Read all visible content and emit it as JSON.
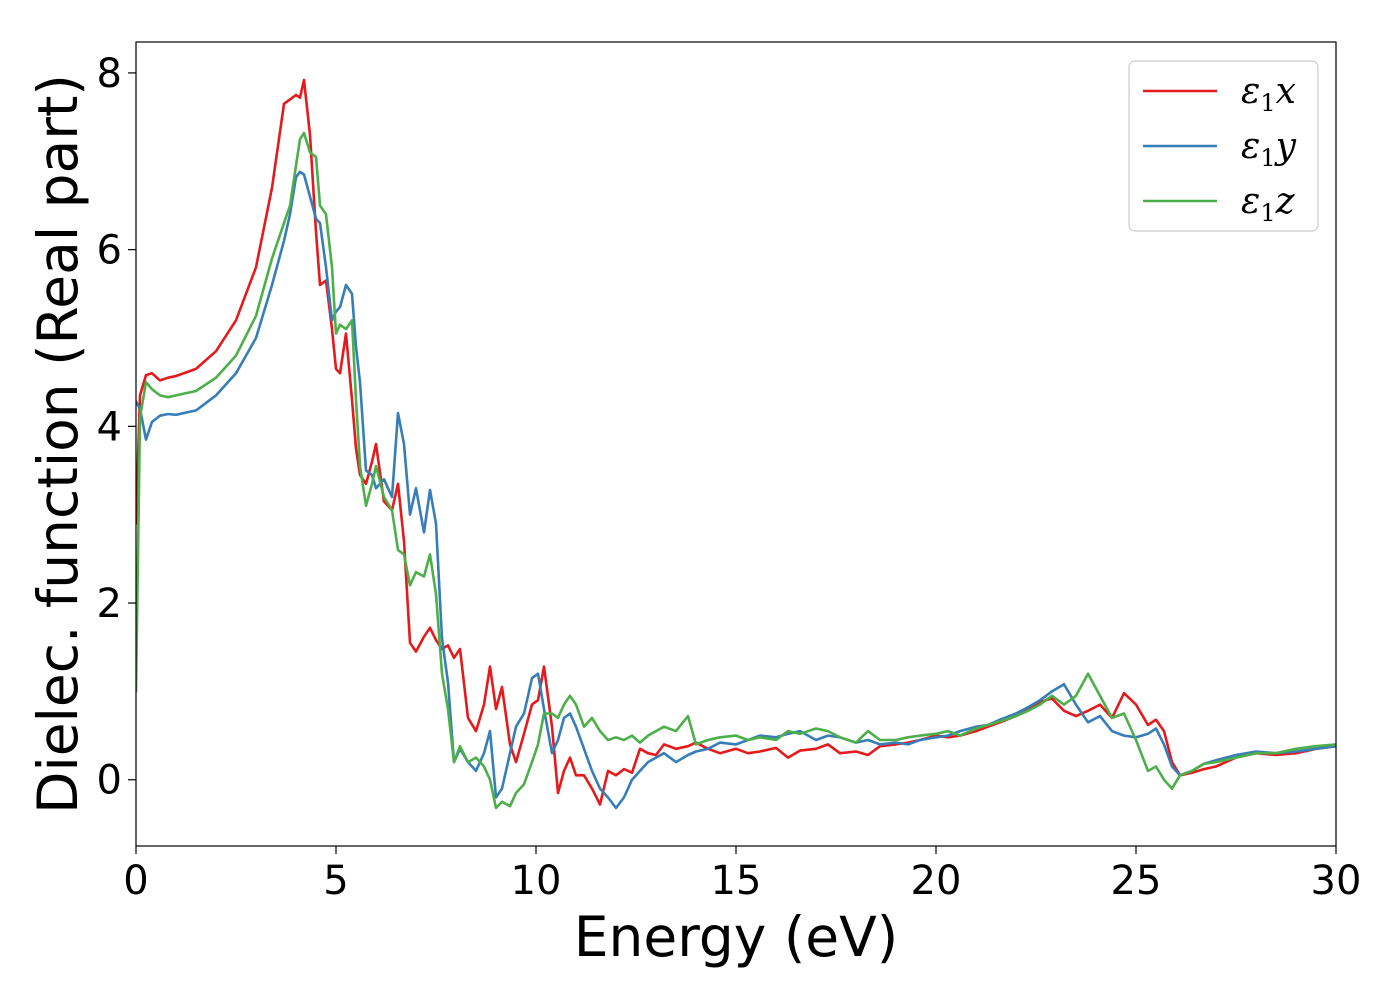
{
  "chart_data": {
    "type": "line",
    "title": "",
    "xlabel": "Energy (eV)",
    "ylabel": "Dielec. function (Real part)",
    "xlim": [
      0,
      30
    ],
    "ylim": [
      -0.75,
      8.35
    ],
    "xticks": [
      0,
      5,
      10,
      15,
      20,
      25,
      30
    ],
    "xtick_labels": [
      "0",
      "5",
      "10",
      "15",
      "20",
      "25",
      "30"
    ],
    "yticks": [
      0,
      2,
      4,
      6,
      8
    ],
    "ytick_labels": [
      "0",
      "2",
      "4",
      "6",
      "8"
    ],
    "grid": false,
    "legend_position": "top-right",
    "series": [
      {
        "name": "ε1x",
        "legend_base": "ε",
        "legend_sub": "1",
        "legend_suffix": "x",
        "color": "#e41a1c",
        "x": [
          0,
          0.1,
          0.25,
          0.4,
          0.6,
          0.8,
          1.0,
          1.5,
          2.0,
          2.5,
          3.0,
          3.4,
          3.7,
          3.85,
          4.0,
          4.1,
          4.2,
          4.35,
          4.5,
          4.6,
          4.75,
          4.9,
          5.0,
          5.1,
          5.25,
          5.4,
          5.5,
          5.6,
          5.75,
          5.9,
          6.0,
          6.2,
          6.4,
          6.55,
          6.7,
          6.85,
          7.0,
          7.2,
          7.35,
          7.5,
          7.65,
          7.8,
          7.95,
          8.1,
          8.3,
          8.5,
          8.7,
          8.85,
          9.0,
          9.15,
          9.35,
          9.5,
          9.7,
          9.9,
          10.05,
          10.2,
          10.4,
          10.55,
          10.7,
          10.85,
          11.0,
          11.2,
          11.4,
          11.6,
          11.8,
          12.0,
          12.2,
          12.4,
          12.6,
          12.8,
          13.0,
          13.2,
          13.5,
          13.8,
          14.0,
          14.3,
          14.6,
          15.0,
          15.3,
          15.6,
          16.0,
          16.3,
          16.6,
          17.0,
          17.3,
          17.6,
          18.0,
          18.3,
          18.6,
          19.0,
          19.3,
          19.6,
          20.0,
          20.3,
          20.6,
          21.0,
          21.3,
          21.6,
          22.0,
          22.3,
          22.6,
          22.9,
          23.2,
          23.5,
          23.8,
          24.1,
          24.4,
          24.7,
          25.0,
          25.3,
          25.5,
          25.7,
          25.9,
          26.1,
          26.4,
          26.7,
          27.0,
          27.5,
          28.0,
          28.5,
          29.0,
          29.5,
          30.0
        ],
        "y": [
          2.9,
          4.35,
          4.58,
          4.6,
          4.52,
          4.55,
          4.57,
          4.65,
          4.85,
          5.2,
          5.8,
          6.7,
          7.65,
          7.7,
          7.75,
          7.72,
          7.92,
          7.3,
          6.2,
          5.6,
          5.65,
          5.1,
          4.65,
          4.6,
          5.05,
          4.3,
          3.75,
          3.45,
          3.35,
          3.6,
          3.8,
          3.15,
          3.05,
          3.35,
          2.7,
          1.55,
          1.45,
          1.62,
          1.72,
          1.58,
          1.48,
          1.52,
          1.38,
          1.48,
          0.7,
          0.55,
          0.85,
          1.28,
          0.8,
          1.05,
          0.4,
          0.2,
          0.52,
          0.85,
          0.9,
          1.28,
          0.6,
          -0.15,
          0.1,
          0.25,
          0.05,
          0.05,
          -0.1,
          -0.28,
          0.1,
          0.05,
          0.12,
          0.08,
          0.35,
          0.3,
          0.28,
          0.4,
          0.35,
          0.38,
          0.42,
          0.35,
          0.3,
          0.35,
          0.3,
          0.32,
          0.36,
          0.25,
          0.33,
          0.35,
          0.4,
          0.3,
          0.32,
          0.28,
          0.38,
          0.4,
          0.42,
          0.45,
          0.5,
          0.48,
          0.5,
          0.55,
          0.6,
          0.65,
          0.72,
          0.8,
          0.88,
          0.92,
          0.78,
          0.72,
          0.78,
          0.85,
          0.7,
          0.98,
          0.85,
          0.62,
          0.68,
          0.55,
          0.2,
          0.05,
          0.08,
          0.12,
          0.15,
          0.25,
          0.3,
          0.28,
          0.3,
          0.35,
          0.38
        ]
      },
      {
        "name": "ε1y",
        "legend_base": "ε",
        "legend_sub": "1",
        "legend_suffix": "y",
        "color": "#377eb8",
        "x": [
          0,
          0.1,
          0.25,
          0.4,
          0.6,
          0.8,
          1.0,
          1.5,
          2.0,
          2.5,
          3.0,
          3.4,
          3.7,
          3.85,
          4.0,
          4.1,
          4.2,
          4.35,
          4.5,
          4.6,
          4.75,
          4.9,
          5.0,
          5.1,
          5.25,
          5.4,
          5.5,
          5.6,
          5.75,
          5.9,
          6.0,
          6.2,
          6.4,
          6.55,
          6.7,
          6.85,
          7.0,
          7.2,
          7.35,
          7.5,
          7.65,
          7.8,
          7.95,
          8.1,
          8.3,
          8.5,
          8.7,
          8.85,
          9.0,
          9.15,
          9.35,
          9.5,
          9.7,
          9.9,
          10.05,
          10.2,
          10.4,
          10.55,
          10.7,
          10.85,
          11.0,
          11.2,
          11.4,
          11.6,
          11.8,
          12.0,
          12.2,
          12.4,
          12.6,
          12.8,
          13.0,
          13.2,
          13.5,
          13.8,
          14.0,
          14.3,
          14.6,
          15.0,
          15.3,
          15.6,
          16.0,
          16.3,
          16.6,
          17.0,
          17.3,
          17.6,
          18.0,
          18.3,
          18.6,
          19.0,
          19.3,
          19.6,
          20.0,
          20.3,
          20.6,
          21.0,
          21.3,
          21.6,
          22.0,
          22.3,
          22.6,
          22.9,
          23.2,
          23.5,
          23.8,
          24.1,
          24.4,
          24.7,
          25.0,
          25.3,
          25.5,
          25.7,
          25.9,
          26.1,
          26.4,
          26.7,
          27.0,
          27.5,
          28.0,
          28.5,
          29.0,
          29.5,
          30.0
        ],
        "y": [
          4.28,
          4.2,
          3.85,
          4.05,
          4.12,
          4.14,
          4.13,
          4.18,
          4.35,
          4.6,
          5.0,
          5.6,
          6.1,
          6.4,
          6.82,
          6.88,
          6.85,
          6.6,
          6.35,
          6.3,
          5.8,
          5.2,
          5.3,
          5.35,
          5.6,
          5.5,
          4.9,
          4.5,
          3.5,
          3.45,
          3.3,
          3.4,
          3.2,
          4.15,
          3.8,
          3.0,
          3.3,
          2.8,
          3.28,
          2.9,
          1.6,
          1.1,
          0.2,
          0.35,
          0.2,
          0.1,
          0.3,
          0.55,
          -0.2,
          -0.1,
          0.3,
          0.6,
          0.75,
          1.15,
          1.2,
          0.8,
          0.3,
          0.45,
          0.7,
          0.75,
          0.6,
          0.35,
          0.1,
          -0.1,
          -0.2,
          -0.32,
          -0.2,
          0.0,
          0.1,
          0.2,
          0.25,
          0.3,
          0.2,
          0.28,
          0.32,
          0.35,
          0.42,
          0.4,
          0.45,
          0.5,
          0.48,
          0.52,
          0.55,
          0.45,
          0.5,
          0.48,
          0.42,
          0.45,
          0.4,
          0.42,
          0.4,
          0.45,
          0.48,
          0.5,
          0.55,
          0.6,
          0.62,
          0.68,
          0.75,
          0.82,
          0.9,
          1.0,
          1.08,
          0.85,
          0.65,
          0.72,
          0.55,
          0.5,
          0.48,
          0.52,
          0.58,
          0.4,
          0.15,
          0.05,
          0.1,
          0.18,
          0.22,
          0.28,
          0.32,
          0.3,
          0.32,
          0.35,
          0.38
        ]
      },
      {
        "name": "ε1z",
        "legend_base": "ε",
        "legend_sub": "1",
        "legend_suffix": "z",
        "color": "#4daf4a",
        "x": [
          0,
          0.1,
          0.25,
          0.4,
          0.6,
          0.8,
          1.0,
          1.5,
          2.0,
          2.5,
          3.0,
          3.4,
          3.7,
          3.85,
          4.0,
          4.1,
          4.2,
          4.35,
          4.5,
          4.6,
          4.75,
          4.9,
          5.0,
          5.1,
          5.25,
          5.4,
          5.5,
          5.6,
          5.75,
          5.9,
          6.0,
          6.2,
          6.4,
          6.55,
          6.7,
          6.85,
          7.0,
          7.2,
          7.35,
          7.5,
          7.65,
          7.8,
          7.95,
          8.1,
          8.3,
          8.5,
          8.7,
          8.85,
          9.0,
          9.15,
          9.35,
          9.5,
          9.7,
          9.9,
          10.05,
          10.2,
          10.4,
          10.55,
          10.7,
          10.85,
          11.0,
          11.2,
          11.4,
          11.6,
          11.8,
          12.0,
          12.2,
          12.4,
          12.6,
          12.8,
          13.0,
          13.2,
          13.5,
          13.8,
          14.0,
          14.3,
          14.6,
          15.0,
          15.3,
          15.6,
          16.0,
          16.3,
          16.6,
          17.0,
          17.3,
          17.6,
          18.0,
          18.3,
          18.6,
          19.0,
          19.3,
          19.6,
          20.0,
          20.3,
          20.6,
          21.0,
          21.3,
          21.6,
          22.0,
          22.3,
          22.6,
          22.9,
          23.2,
          23.5,
          23.8,
          24.1,
          24.4,
          24.7,
          25.0,
          25.3,
          25.5,
          25.7,
          25.9,
          26.1,
          26.4,
          26.7,
          27.0,
          27.5,
          28.0,
          28.5,
          29.0,
          29.5,
          30.0
        ],
        "y": [
          1.0,
          4.1,
          4.5,
          4.42,
          4.35,
          4.33,
          4.35,
          4.4,
          4.55,
          4.8,
          5.25,
          5.9,
          6.3,
          6.5,
          6.95,
          7.25,
          7.32,
          7.1,
          7.05,
          6.5,
          6.4,
          5.8,
          5.05,
          5.15,
          5.1,
          5.2,
          4.3,
          3.55,
          3.1,
          3.35,
          3.55,
          3.2,
          3.05,
          2.6,
          2.55,
          2.2,
          2.35,
          2.3,
          2.55,
          2.1,
          1.2,
          0.8,
          0.2,
          0.38,
          0.2,
          0.25,
          0.15,
          0.0,
          -0.32,
          -0.25,
          -0.3,
          -0.15,
          -0.05,
          0.2,
          0.4,
          0.75,
          0.75,
          0.7,
          0.85,
          0.95,
          0.85,
          0.6,
          0.7,
          0.55,
          0.45,
          0.48,
          0.45,
          0.5,
          0.42,
          0.5,
          0.55,
          0.6,
          0.55,
          0.72,
          0.4,
          0.45,
          0.48,
          0.5,
          0.45,
          0.48,
          0.45,
          0.55,
          0.52,
          0.58,
          0.55,
          0.48,
          0.42,
          0.55,
          0.45,
          0.45,
          0.48,
          0.5,
          0.52,
          0.55,
          0.5,
          0.58,
          0.62,
          0.66,
          0.72,
          0.78,
          0.85,
          0.95,
          0.85,
          0.95,
          1.2,
          0.95,
          0.7,
          0.75,
          0.45,
          0.1,
          0.15,
          0.0,
          -0.1,
          0.05,
          0.1,
          0.18,
          0.2,
          0.25,
          0.3,
          0.3,
          0.35,
          0.38,
          0.4
        ]
      }
    ]
  }
}
